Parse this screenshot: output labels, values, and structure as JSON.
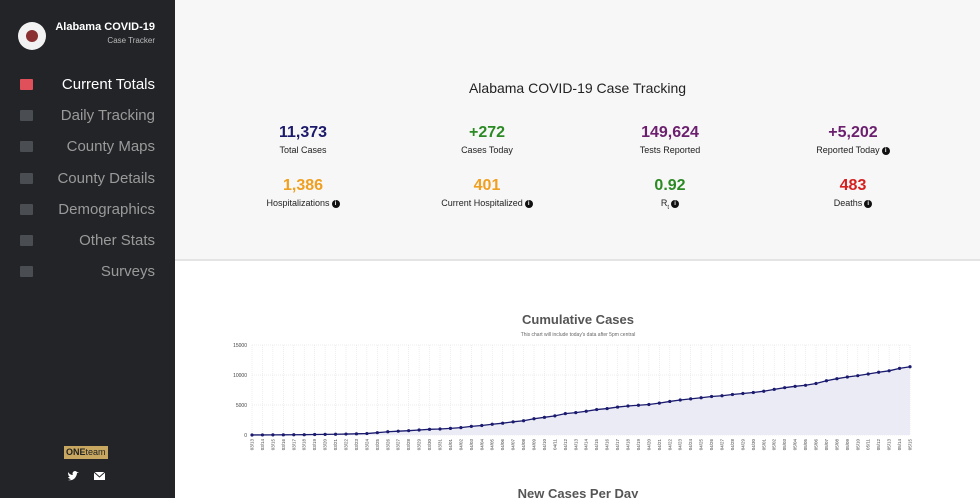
{
  "sidebar": {
    "brand_title": "Alabama COVID-19",
    "brand_subtitle": "Case Tracker",
    "nav": [
      "Current Totals",
      "Daily Tracking",
      "County Maps",
      "County Details",
      "Demographics",
      "Other Stats",
      "Surveys"
    ],
    "active": 0,
    "footer_logo": [
      "ONE",
      "team"
    ]
  },
  "header": {
    "title": "Alabama COVID-19 Case Tracking",
    "stats": [
      {
        "value": "11,373",
        "label": "Total Cases",
        "color": "#1c1a6b"
      },
      {
        "value": "+272",
        "label": "Cases Today",
        "color": "#2b8a24"
      },
      {
        "value": "149,624",
        "label": "Tests Reported",
        "color": "#6b1f6e"
      },
      {
        "value": "+5,202",
        "label": "Reported Today",
        "color": "#6b1f6e",
        "info": true
      },
      {
        "value": "1,386",
        "label": "Hospitalizations",
        "color": "#f0a020",
        "info": true
      },
      {
        "value": "401",
        "label": "Current Hospitalized",
        "color": "#f0a020",
        "info": true
      },
      {
        "value": "0.92",
        "label": "R",
        "label_sub": "t",
        "color": "#2b8a24",
        "info": true
      },
      {
        "value": "483",
        "label": "Deaths",
        "color": "#d61f1f",
        "info": true
      }
    ]
  },
  "chart": {
    "type": "line",
    "title": "Cumulative Cases",
    "subtitle": "This chart will include today's data after 5pm central",
    "x": [
      "03/13",
      "03/14",
      "03/15",
      "03/16",
      "03/17",
      "03/18",
      "03/19",
      "03/20",
      "03/21",
      "03/22",
      "03/23",
      "03/24",
      "03/25",
      "03/26",
      "03/27",
      "03/28",
      "03/29",
      "03/30",
      "03/31",
      "04/01",
      "04/02",
      "04/03",
      "04/04",
      "04/05",
      "04/06",
      "04/07",
      "04/08",
      "04/09",
      "04/10",
      "04/11",
      "04/12",
      "04/13",
      "04/14",
      "04/15",
      "04/16",
      "04/17",
      "04/18",
      "04/19",
      "04/20",
      "04/21",
      "04/22",
      "04/23",
      "04/24",
      "04/25",
      "04/26",
      "04/27",
      "04/28",
      "04/29",
      "04/30",
      "05/01",
      "05/02",
      "05/03",
      "05/04",
      "05/05",
      "05/06",
      "05/07",
      "05/08",
      "05/09",
      "05/10",
      "05/11",
      "05/12",
      "05/13",
      "05/14",
      "05/15"
    ],
    "values": [
      6,
      12,
      22,
      29,
      39,
      51,
      78,
      106,
      131,
      157,
      196,
      242,
      386,
      538,
      639,
      720,
      830,
      947,
      999,
      1106,
      1233,
      1432,
      1580,
      1796,
      1968,
      2197,
      2369,
      2703,
      2947,
      3191,
      3563,
      3734,
      3953,
      4241,
      4404,
      4655,
      4837,
      4964,
      5079,
      5317,
      5593,
      5832,
      6026,
      6213,
      6421,
      6539,
      6750,
      6912,
      7088,
      7294,
      7611,
      7888,
      8112,
      8285,
      8581,
      9046,
      9385,
      9668,
      9889,
      10164,
      10464,
      10700,
      11101,
      11373
    ],
    "color": "#1a1a6e",
    "area_color": "#ebebf6",
    "ylim": [
      0,
      15000
    ],
    "yticks": [
      0,
      5000,
      10000,
      15000
    ],
    "grid": true
  },
  "next_chart_title": "New Cases Per Day"
}
